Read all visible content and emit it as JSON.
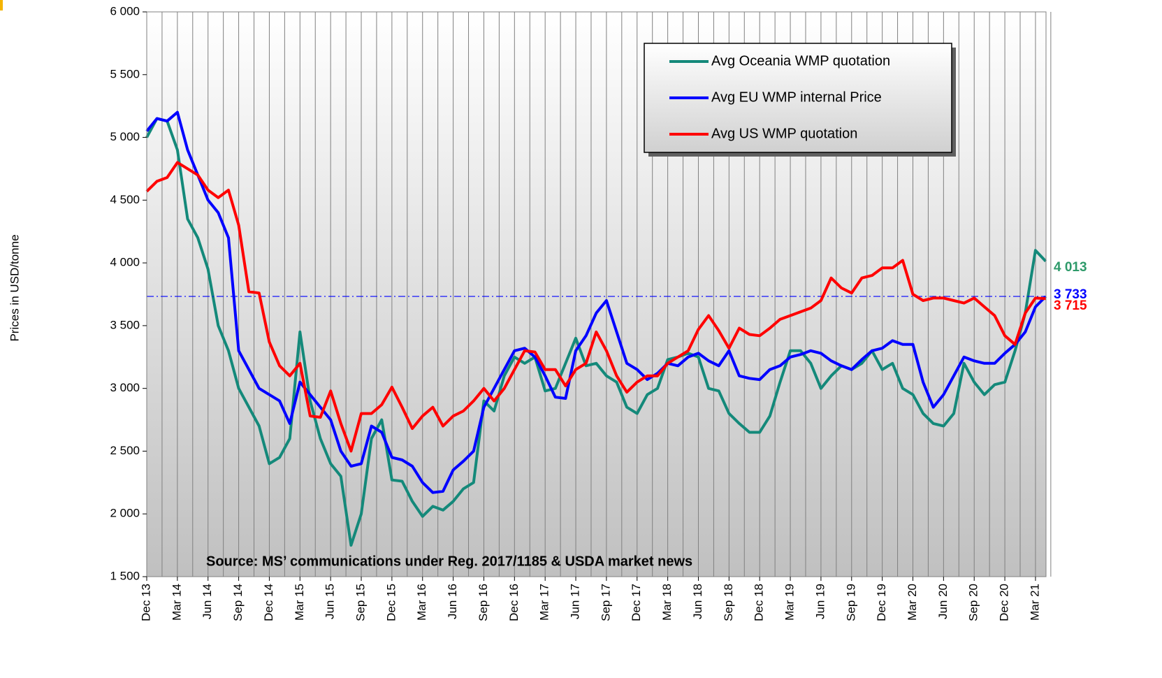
{
  "chart_data": {
    "type": "line",
    "y_label": "Prices in USD/tonne",
    "annotation": "Source: MS’ communications under Reg. 2017/1185  & USDA market news",
    "categories": [
      "Dec 13",
      null,
      null,
      "Mar 14",
      null,
      null,
      "Jun 14",
      null,
      null,
      "Sep 14",
      null,
      null,
      "Dec 14",
      null,
      null,
      "Mar 15",
      null,
      null,
      "Jun 15",
      null,
      null,
      "Sep 15",
      null,
      null,
      "Dec 15",
      null,
      null,
      "Mar 16",
      null,
      null,
      "Jun 16",
      null,
      null,
      "Sep 16",
      null,
      null,
      "Dec 16",
      null,
      null,
      "Mar 17",
      null,
      null,
      "Jun 17",
      null,
      null,
      "Sep 17",
      null,
      null,
      "Dec 17",
      null,
      null,
      "Mar 18",
      null,
      null,
      "Jun 18",
      null,
      null,
      "Sep 18",
      null,
      null,
      "Dec 18",
      null,
      null,
      "Mar 19",
      null,
      null,
      "Jun 19",
      null,
      null,
      "Sep 19",
      null,
      null,
      "Dec 19",
      null,
      null,
      "Mar 20",
      null,
      null,
      "Jun 20",
      null,
      null,
      "Sep 20",
      null,
      null,
      "Dec 20",
      null,
      null,
      "Mar 21",
      null
    ],
    "series": [
      {
        "name": "Avg Oceania WMP quotation",
        "color": "#14897a",
        "label_color": "#2e9a6a",
        "end_label": "4 013",
        "values": [
          5000,
          5150,
          5130,
          4900,
          4350,
          4200,
          3950,
          3500,
          3300,
          3000,
          2850,
          2700,
          2400,
          2450,
          2600,
          3450,
          2900,
          2600,
          2400,
          2300,
          1750,
          2000,
          2600,
          2750,
          2270,
          2260,
          2100,
          1980,
          2060,
          2030,
          2100,
          2200,
          2250,
          2900,
          2820,
          3100,
          3250,
          3200,
          3250,
          2980,
          3000,
          3200,
          3400,
          3180,
          3200,
          3100,
          3050,
          2850,
          2800,
          2950,
          3000,
          3230,
          3250,
          3280,
          3250,
          3000,
          2980,
          2800,
          2720,
          2650,
          2650,
          2780,
          3050,
          3300,
          3300,
          3200,
          3000,
          3100,
          3180,
          3150,
          3200,
          3300,
          3150,
          3200,
          3000,
          2950,
          2800,
          2720,
          2700,
          2800,
          3200,
          3050,
          2950,
          3030,
          3050,
          3300,
          3600,
          4100,
          4013
        ]
      },
      {
        "name": "Avg EU WMP internal Price",
        "color": "#0000ff",
        "label_color": "#0000ff",
        "end_label": "3 733",
        "reference_line": true,
        "values": [
          5050,
          5150,
          5130,
          5200,
          4900,
          4700,
          4500,
          4400,
          4200,
          3300,
          3150,
          3000,
          2950,
          2900,
          2720,
          3050,
          2950,
          2850,
          2750,
          2500,
          2380,
          2400,
          2700,
          2650,
          2450,
          2430,
          2380,
          2250,
          2170,
          2180,
          2350,
          2420,
          2500,
          2850,
          3000,
          3150,
          3300,
          3320,
          3250,
          3100,
          2930,
          2920,
          3300,
          3420,
          3600,
          3700,
          3450,
          3200,
          3150,
          3070,
          3120,
          3200,
          3180,
          3250,
          3280,
          3220,
          3180,
          3300,
          3100,
          3080,
          3070,
          3150,
          3180,
          3250,
          3270,
          3300,
          3280,
          3220,
          3180,
          3150,
          3230,
          3300,
          3320,
          3380,
          3350,
          3350,
          3050,
          2850,
          2950,
          3100,
          3250,
          3220,
          3200,
          3200,
          3280,
          3350,
          3450,
          3650,
          3733
        ]
      },
      {
        "name": "Avg US WMP quotation",
        "color": "#ff0000",
        "label_color": "#ff0000",
        "end_label": "3 715",
        "values": [
          4570,
          4650,
          4680,
          4800,
          4750,
          4700,
          4580,
          4520,
          4580,
          4300,
          3770,
          3760,
          3370,
          3180,
          3100,
          3200,
          2780,
          2770,
          2980,
          2720,
          2500,
          2800,
          2800,
          2870,
          3010,
          2850,
          2680,
          2780,
          2850,
          2700,
          2780,
          2820,
          2900,
          3000,
          2900,
          3000,
          3150,
          3300,
          3290,
          3150,
          3150,
          3020,
          3150,
          3200,
          3450,
          3300,
          3100,
          2970,
          3050,
          3100,
          3100,
          3200,
          3250,
          3300,
          3470,
          3580,
          3460,
          3320,
          3480,
          3430,
          3420,
          3480,
          3550,
          3580,
          3610,
          3640,
          3700,
          3880,
          3800,
          3760,
          3880,
          3900,
          3960,
          3960,
          4020,
          3750,
          3700,
          3720,
          3720,
          3700,
          3680,
          3720,
          3650,
          3580,
          3420,
          3350,
          3600,
          3720,
          3715
        ]
      }
    ],
    "ylim": [
      1500,
      6000
    ],
    "yticks": [
      {
        "value": 1500,
        "label": "1 500"
      },
      {
        "value": 2000,
        "label": "2 000"
      },
      {
        "value": 2500,
        "label": "2 500"
      },
      {
        "value": 3000,
        "label": "3 000"
      },
      {
        "value": 3500,
        "label": "3 500"
      },
      {
        "value": 4000,
        "label": "4 000"
      },
      {
        "value": 4500,
        "label": "4 500"
      },
      {
        "value": 5000,
        "label": "5 000"
      },
      {
        "value": 5500,
        "label": "5 500"
      },
      {
        "value": 6000,
        "label": "6 000"
      }
    ],
    "grid": true,
    "legend": "top-right"
  }
}
